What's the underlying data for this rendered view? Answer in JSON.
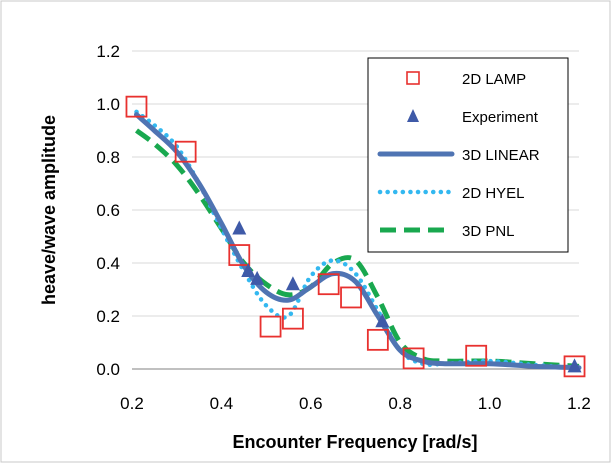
{
  "chart_data": {
    "type": "line",
    "title": "",
    "xlabel": "Encounter Frequency [rad/s]",
    "ylabel": "heave/wave amplitude",
    "xlim": [
      0.2,
      1.2
    ],
    "ylim": [
      0.0,
      1.2
    ],
    "x_ticks": [
      "0.2",
      "0.4",
      "0.6",
      "0.8",
      "1.0",
      "1.2"
    ],
    "y_ticks": [
      "0.0",
      "0.2",
      "0.4",
      "0.6",
      "0.8",
      "1.0",
      "1.2"
    ],
    "grid": "horizontal",
    "legend_position": "top-right",
    "series": [
      {
        "name": "2D LAMP",
        "style": "open-square",
        "color": "#e8312f",
        "x": [
          0.21,
          0.32,
          0.44,
          0.51,
          0.56,
          0.64,
          0.69,
          0.75,
          0.83,
          0.97,
          1.19
        ],
        "y": [
          0.99,
          0.82,
          0.43,
          0.16,
          0.19,
          0.32,
          0.27,
          0.11,
          0.04,
          0.05,
          0.01
        ]
      },
      {
        "name": "Experiment",
        "style": "filled-triangle",
        "color": "#3f5aa8",
        "x": [
          0.44,
          0.46,
          0.48,
          0.56,
          0.76,
          1.19
        ],
        "y": [
          0.53,
          0.37,
          0.34,
          0.32,
          0.18,
          0.01
        ]
      },
      {
        "name": "3D LINEAR",
        "style": "solid",
        "color": "#4f74b3",
        "x": [
          0.21,
          0.25,
          0.3,
          0.35,
          0.4,
          0.45,
          0.5,
          0.55,
          0.6,
          0.65,
          0.7,
          0.75,
          0.8,
          0.85,
          0.9,
          1.0,
          1.1,
          1.2
        ],
        "y": [
          0.96,
          0.9,
          0.82,
          0.7,
          0.55,
          0.39,
          0.29,
          0.26,
          0.31,
          0.36,
          0.33,
          0.2,
          0.07,
          0.03,
          0.02,
          0.02,
          0.01,
          0.005
        ]
      },
      {
        "name": "2D HYEL",
        "style": "dotted",
        "color": "#33b8f0",
        "x": [
          0.21,
          0.25,
          0.3,
          0.35,
          0.4,
          0.45,
          0.5,
          0.55,
          0.6,
          0.65,
          0.7,
          0.75,
          0.8,
          0.85,
          0.9,
          1.0,
          1.1,
          1.2
        ],
        "y": [
          0.97,
          0.92,
          0.84,
          0.7,
          0.53,
          0.37,
          0.24,
          0.2,
          0.35,
          0.41,
          0.36,
          0.22,
          0.07,
          0.02,
          0.02,
          0.03,
          0.015,
          0.005
        ]
      },
      {
        "name": "3D PNL",
        "style": "dashed",
        "color": "#19a84f",
        "x": [
          0.21,
          0.25,
          0.3,
          0.35,
          0.4,
          0.45,
          0.5,
          0.55,
          0.6,
          0.65,
          0.7,
          0.75,
          0.8,
          0.85,
          0.9,
          1.0,
          1.1,
          1.2
        ],
        "y": [
          0.9,
          0.85,
          0.77,
          0.66,
          0.53,
          0.4,
          0.32,
          0.28,
          0.31,
          0.4,
          0.41,
          0.27,
          0.1,
          0.04,
          0.03,
          0.03,
          0.02,
          0.01
        ]
      }
    ]
  }
}
